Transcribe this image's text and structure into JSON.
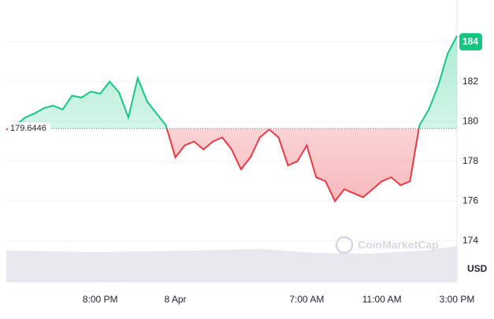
{
  "chart_data": {
    "type": "line",
    "x": [
      0,
      0.5,
      1,
      1.5,
      2,
      2.5,
      3,
      3.5,
      4,
      4.5,
      5,
      5.5,
      6,
      6.5,
      7,
      7.5,
      8,
      8.5,
      9,
      9.5,
      10,
      10.5,
      11,
      11.5,
      12,
      12.5,
      13,
      13.5,
      14,
      14.5,
      15,
      15.5,
      16,
      16.5,
      17,
      17.5,
      18,
      18.5,
      19,
      19.5,
      20,
      20.5,
      21,
      21.5,
      22,
      22.5,
      23,
      23.5,
      24
    ],
    "series": [
      {
        "values": [
          179.6,
          179.8,
          180.2,
          180.4,
          180.67,
          180.8,
          180.6,
          181.3,
          181.2,
          181.5,
          181.4,
          182.0,
          181.47,
          180.2,
          182.18,
          181.0,
          180.4,
          179.8,
          178.2,
          178.8,
          179.0,
          178.6,
          179.0,
          179.2,
          178.6,
          177.6,
          178.2,
          179.2,
          179.6,
          179.2,
          177.8,
          178.0,
          178.8,
          177.2,
          177.0,
          176.0,
          176.6,
          176.4,
          176.2,
          176.6,
          177.0,
          177.2,
          176.8,
          177.0,
          179.8,
          180.6,
          181.8,
          183.4,
          184.3
        ]
      }
    ],
    "up_color": "#16c784",
    "down_color": "#ea3943",
    "baseline": 179.6446,
    "xlim": [
      0,
      24
    ],
    "xticks": [
      {
        "value": 5,
        "label": "8:00 PM"
      },
      {
        "value": 9,
        "label": "8 Apr"
      },
      {
        "value": 16,
        "label": "7:00 AM"
      },
      {
        "value": 20,
        "label": "11:00 AM"
      },
      {
        "value": 24,
        "label": "3:00 PM"
      }
    ],
    "ylim": [
      174,
      186.1
    ],
    "yticks": [
      174,
      176,
      178,
      180,
      182,
      184
    ],
    "grid": true,
    "currency": "USD",
    "watermark": "CoinMarketCap"
  }
}
